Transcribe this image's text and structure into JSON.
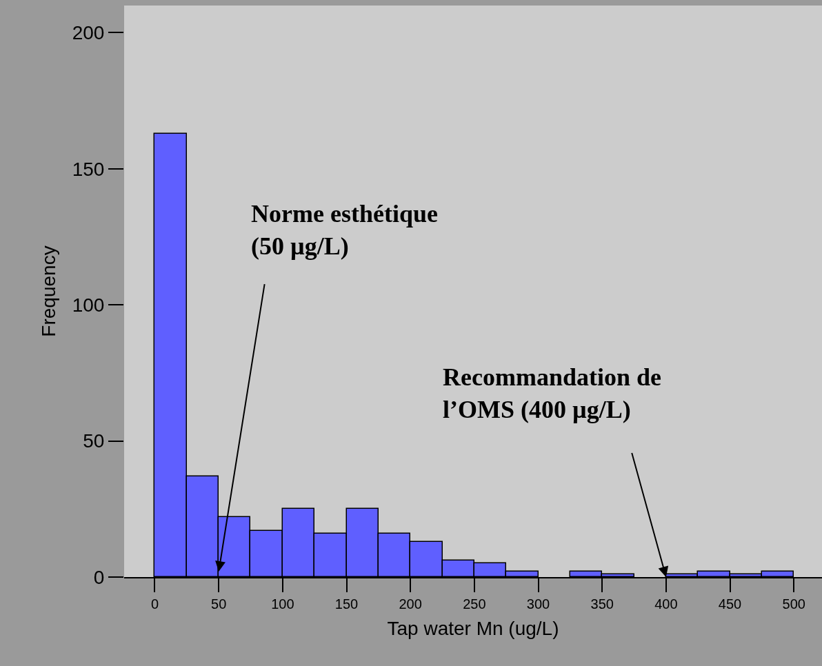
{
  "chart_data": {
    "type": "histogram",
    "xlabel": "Tap water Mn (ug/L)",
    "ylabel": "Frequency",
    "bins": [
      0,
      25,
      50,
      75,
      100,
      125,
      150,
      175,
      200,
      225,
      250,
      275,
      300,
      325,
      350,
      375,
      400,
      425,
      450,
      475,
      500
    ],
    "values": [
      163,
      37,
      22,
      17,
      25,
      16,
      25,
      16,
      13,
      6,
      5,
      2,
      0,
      2,
      1,
      0,
      1,
      2,
      1,
      2
    ],
    "color": "#5f5fff",
    "xlim": [
      -24,
      522
    ],
    "xticks": [
      0,
      50,
      100,
      150,
      200,
      250,
      300,
      350,
      400,
      450,
      500
    ],
    "ylim": [
      0,
      210
    ],
    "yticks": [
      0,
      50,
      100,
      150,
      200
    ],
    "grid": false,
    "annotations": [
      {
        "text": "Norme esthétique\n(50 µg/L)",
        "x": 50,
        "y": 2
      },
      {
        "text": "Recommandation de\nl’OMS (400 µg/L)",
        "x": 400,
        "y": 0
      }
    ]
  }
}
